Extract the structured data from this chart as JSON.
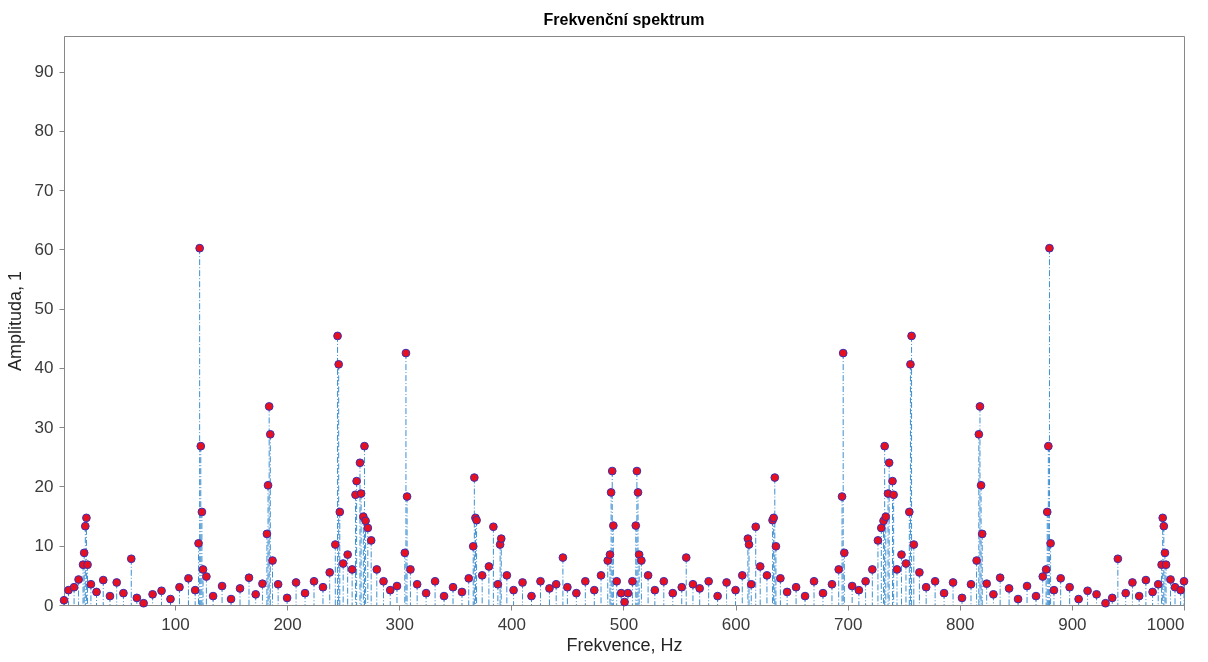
{
  "chart_data": {
    "type": "lollipop",
    "title": "Frekvenční spektrum",
    "xlabel": "Frekvence, Hz",
    "ylabel": "Amplituda, 1",
    "xlim": [
      1,
      1000
    ],
    "ylim": [
      0,
      96
    ],
    "xticks": [
      100,
      200,
      300,
      400,
      500,
      600,
      700,
      800,
      900,
      1000
    ],
    "yticks": [
      0,
      10,
      20,
      30,
      40,
      50,
      60,
      70,
      80,
      90
    ],
    "grid": false,
    "marker": "circle",
    "line_style": "dashed",
    "x": [
      1,
      5,
      10,
      14,
      18,
      19,
      20,
      21,
      22,
      25,
      30,
      36,
      42,
      48,
      54,
      61,
      66,
      72,
      80,
      88,
      96,
      104,
      112,
      118,
      121,
      122,
      123,
      124,
      125,
      128,
      134,
      142,
      150,
      158,
      166,
      172,
      178,
      182,
      183,
      184,
      185,
      187,
      192,
      200,
      208,
      216,
      224,
      232,
      238,
      243,
      245,
      246,
      247,
      250,
      254,
      258,
      261,
      262,
      265,
      266,
      268,
      269,
      270,
      272,
      275,
      280,
      286,
      292,
      298,
      305,
      306,
      307,
      310,
      316,
      324,
      332,
      340,
      348,
      356,
      362,
      366,
      367,
      368,
      369,
      374,
      380,
      384,
      388,
      390,
      391,
      396,
      402,
      410,
      418,
      426,
      434,
      440,
      446,
      450,
      458,
      466,
      474,
      480,
      486,
      488,
      489,
      490,
      491,
      494,
      498,
      501,
      504,
      508,
      511,
      512,
      513,
      514,
      516,
      522,
      528,
      536,
      544,
      552,
      556,
      562,
      568,
      576,
      584,
      592,
      600,
      606,
      611,
      612,
      614,
      618,
      622,
      628,
      633,
      634,
      635,
      636,
      640,
      646,
      654,
      662,
      670,
      678,
      686,
      692,
      695,
      696,
      697,
      704,
      710,
      716,
      722,
      727,
      730,
      732,
      733,
      734,
      736,
      737,
      740,
      741,
      744,
      748,
      752,
      755,
      756,
      757,
      759,
      764,
      770,
      778,
      786,
      794,
      802,
      810,
      815,
      817,
      818,
      819,
      820,
      824,
      830,
      836,
      844,
      852,
      860,
      868,
      874,
      877,
      878,
      879,
      880,
      881,
      884,
      890,
      898,
      906,
      914,
      922,
      930,
      936,
      941,
      948,
      954,
      960,
      966,
      972,
      977,
      980,
      981,
      982,
      983,
      984,
      988,
      992,
      997,
      1000
    ],
    "series": [
      {
        "color": "#e8101e",
        "values": [
          0.8,
          2.5,
          3.0,
          4.3,
          6.8,
          8.8,
          13.3,
          14.7,
          6.8,
          3.5,
          2.2,
          4.2,
          1.5,
          3.8,
          2.0,
          7.8,
          1.2,
          0.3,
          1.8,
          2.4,
          1.0,
          3.0,
          4.5,
          2.5,
          10.4,
          60.2,
          26.8,
          15.7,
          6.0,
          4.8,
          1.5,
          3.2,
          1.0,
          2.8,
          4.6,
          1.8,
          3.6,
          12.0,
          20.2,
          33.5,
          28.8,
          7.5,
          3.5,
          1.2,
          3.8,
          2.0,
          4.0,
          3.0,
          5.5,
          10.2,
          45.4,
          40.6,
          15.7,
          7.0,
          8.5,
          6.0,
          18.6,
          20.9,
          24.0,
          18.8,
          14.9,
          26.8,
          14.2,
          13.0,
          10.9,
          6.0,
          4.0,
          2.5,
          3.2,
          8.8,
          42.5,
          18.3,
          6.0,
          3.5,
          2.0,
          4.0,
          1.5,
          3.0,
          2.2,
          4.5,
          9.9,
          21.5,
          14.7,
          14.3,
          5.0,
          6.5,
          13.2,
          3.5,
          10.2,
          11.2,
          5.0,
          2.5,
          3.8,
          1.5,
          4.0,
          2.8,
          3.5,
          8.0,
          3.0,
          2.0,
          4.0,
          2.5,
          5.0,
          7.5,
          8.5,
          19.0,
          22.6,
          13.4,
          4.0,
          2.0,
          0.5,
          2.0,
          4.0,
          13.4,
          22.6,
          19.0,
          8.5,
          7.5,
          5.0,
          2.5,
          4.0,
          2.0,
          3.0,
          8.0,
          3.5,
          2.8,
          4.0,
          1.5,
          3.8,
          2.5,
          5.0,
          11.2,
          10.2,
          3.5,
          13.2,
          6.5,
          5.0,
          14.3,
          14.7,
          21.5,
          9.9,
          4.5,
          2.2,
          3.0,
          1.5,
          4.0,
          2.0,
          3.5,
          6.0,
          18.3,
          42.5,
          8.8,
          3.2,
          2.5,
          4.0,
          6.0,
          10.9,
          13.0,
          14.2,
          26.8,
          14.9,
          18.8,
          24.0,
          20.9,
          18.6,
          6.0,
          8.5,
          7.0,
          15.7,
          40.6,
          45.4,
          10.2,
          5.5,
          3.0,
          4.0,
          2.0,
          3.8,
          1.2,
          3.5,
          7.5,
          28.8,
          33.5,
          20.2,
          12.0,
          3.6,
          1.8,
          4.6,
          2.8,
          1.0,
          3.2,
          1.5,
          4.8,
          6.0,
          15.7,
          26.8,
          60.2,
          10.4,
          2.5,
          4.5,
          3.0,
          1.0,
          2.4,
          1.8,
          0.3,
          1.2,
          7.8,
          2.0,
          3.8,
          1.5,
          4.2,
          2.2,
          3.5,
          6.8,
          14.7,
          13.3,
          8.8,
          6.8,
          4.3,
          3.0,
          2.5,
          4.0
        ]
      }
    ]
  }
}
